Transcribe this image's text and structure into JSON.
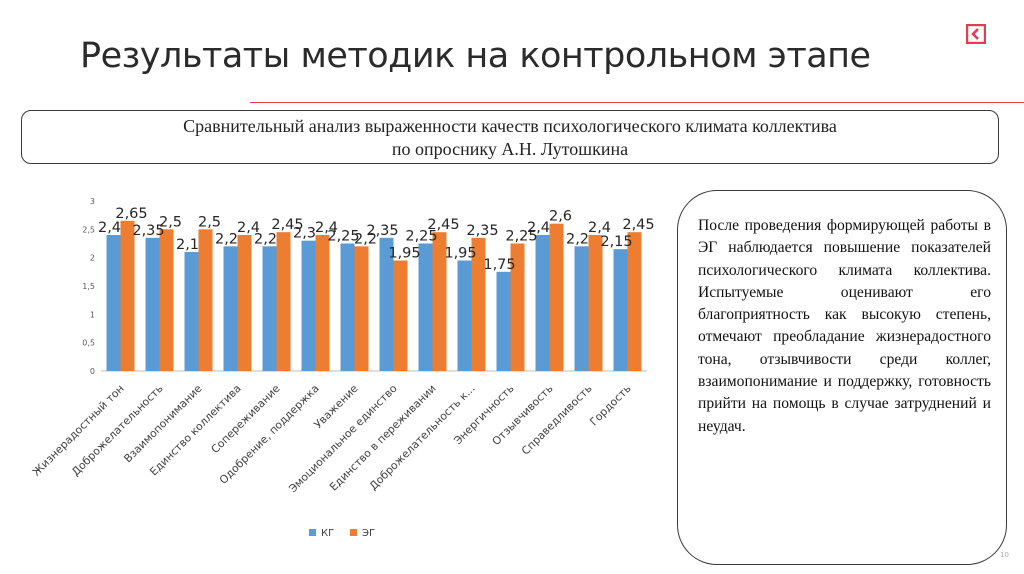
{
  "slide": {
    "title": "Результаты методик на контрольном этапе",
    "subtitle_line1": "Сравнительный анализ выраженности качеств психологического климата коллектива",
    "subtitle_line2": "по опроснику А.Н. Лутошкина",
    "note": "После проведения формирующей работы в ЭГ наблюдается повышение показателей психологического климата коллектива. Испытуемые оценивают его благоприятность как высокую степень, отмечают преобладание жизнерадостного тона, отзывчивости среди коллег, взаимопонимание и поддержку, готовность прийти на помощь в случае затруднений и неудач.",
    "page_number": "10",
    "accent_color": "#e73c4e"
  },
  "chart_data": {
    "type": "bar",
    "title": "",
    "xlabel": "",
    "ylabel": "",
    "ylim": [
      0,
      3
    ],
    "yticks": [
      "0",
      "0,5",
      "1",
      "1,5",
      "2",
      "2,5",
      "3"
    ],
    "categories": [
      "Жизнерадостный тон",
      "Доброжелательность",
      "Взаимопонимание",
      "Единство коллектива",
      "Сопереживание",
      "Одобрение, поддержка",
      "Уважение",
      "Эмоциональное единство",
      "Единство в переживании",
      "Доброжелательность к...",
      "Энергичность",
      "Отзывчивость",
      "Справедливость",
      "Гордость"
    ],
    "series": [
      {
        "name": "КГ",
        "color": "#5b9bd5",
        "values": [
          2.4,
          2.35,
          2.1,
          2.2,
          2.2,
          2.3,
          2.25,
          2.35,
          2.25,
          1.95,
          1.75,
          2.4,
          2.2,
          2.15
        ],
        "labels": [
          "2,4",
          "2,35",
          "2,1",
          "2,2",
          "2,2",
          "2,3",
          "2,25",
          "2,35",
          "2,25",
          "1,95",
          "1,75",
          "2,4",
          "2,2",
          "2,15"
        ]
      },
      {
        "name": "ЭГ",
        "color": "#ed7d31",
        "values": [
          2.65,
          2.5,
          2.5,
          2.4,
          2.45,
          2.4,
          2.2,
          1.95,
          2.45,
          2.35,
          2.25,
          2.6,
          2.4,
          2.45
        ],
        "labels": [
          "2,65",
          "2,5",
          "2,5",
          "2,4",
          "2,45",
          "2,4",
          "2,2",
          "1,95",
          "2,45",
          "2,35",
          "2,25",
          "2,6",
          "2,4",
          "2,45"
        ]
      }
    ],
    "legend_position": "bottom"
  }
}
